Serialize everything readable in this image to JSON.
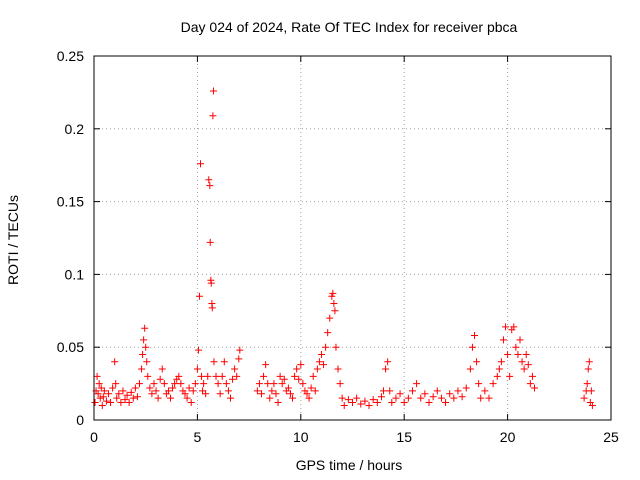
{
  "chart_data": {
    "type": "scatter",
    "title": "Day 024 of 2024, Rate Of TEC Index for receiver pbca",
    "xlabel": "GPS time / hours",
    "ylabel": "ROTI / TECUs",
    "xlim": [
      0,
      25
    ],
    "ylim": [
      0,
      0.25
    ],
    "xticks": [
      "0",
      "5",
      "10",
      "15",
      "20",
      "25"
    ],
    "yticks": [
      "0",
      "0.05",
      "0.1",
      "0.15",
      "0.2",
      "0.25"
    ],
    "grid": true,
    "marker": "+",
    "color": "#ff0000",
    "series": [
      {
        "points": [
          [
            0.05,
            0.012
          ],
          [
            0.1,
            0.02
          ],
          [
            0.15,
            0.03
          ],
          [
            0.2,
            0.018
          ],
          [
            0.25,
            0.025
          ],
          [
            0.3,
            0.015
          ],
          [
            0.35,
            0.022
          ],
          [
            0.4,
            0.01
          ],
          [
            0.45,
            0.016
          ],
          [
            0.5,
            0.02
          ],
          [
            0.6,
            0.013
          ],
          [
            0.7,
            0.018
          ],
          [
            0.8,
            0.012
          ],
          [
            0.9,
            0.022
          ],
          [
            1.0,
            0.04
          ],
          [
            1.05,
            0.025
          ],
          [
            1.1,
            0.015
          ],
          [
            1.2,
            0.018
          ],
          [
            1.3,
            0.012
          ],
          [
            1.4,
            0.02
          ],
          [
            1.5,
            0.014
          ],
          [
            1.6,
            0.017
          ],
          [
            1.7,
            0.012
          ],
          [
            1.8,
            0.019
          ],
          [
            1.9,
            0.015
          ],
          [
            2.0,
            0.022
          ],
          [
            2.1,
            0.016
          ],
          [
            2.2,
            0.025
          ],
          [
            2.3,
            0.035
          ],
          [
            2.35,
            0.045
          ],
          [
            2.4,
            0.055
          ],
          [
            2.45,
            0.063
          ],
          [
            2.5,
            0.05
          ],
          [
            2.55,
            0.04
          ],
          [
            2.6,
            0.03
          ],
          [
            2.7,
            0.022
          ],
          [
            2.8,
            0.018
          ],
          [
            2.9,
            0.025
          ],
          [
            3.0,
            0.02
          ],
          [
            3.1,
            0.015
          ],
          [
            3.2,
            0.028
          ],
          [
            3.3,
            0.035
          ],
          [
            3.4,
            0.025
          ],
          [
            3.5,
            0.018
          ],
          [
            3.6,
            0.02
          ],
          [
            3.7,
            0.015
          ],
          [
            3.8,
            0.022
          ],
          [
            3.9,
            0.025
          ],
          [
            4.0,
            0.028
          ],
          [
            4.1,
            0.03
          ],
          [
            4.2,
            0.025
          ],
          [
            4.3,
            0.02
          ],
          [
            4.4,
            0.018
          ],
          [
            4.5,
            0.015
          ],
          [
            4.6,
            0.022
          ],
          [
            4.7,
            0.012
          ],
          [
            4.8,
            0.02
          ],
          [
            4.9,
            0.025
          ],
          [
            5.0,
            0.035
          ],
          [
            5.05,
            0.048
          ],
          [
            5.1,
            0.085
          ],
          [
            5.15,
            0.176
          ],
          [
            5.2,
            0.03
          ],
          [
            5.25,
            0.02
          ],
          [
            5.3,
            0.025
          ],
          [
            5.4,
            0.018
          ],
          [
            5.5,
            0.03
          ],
          [
            5.55,
            0.165
          ],
          [
            5.6,
            0.161
          ],
          [
            5.62,
            0.122
          ],
          [
            5.65,
            0.096
          ],
          [
            5.67,
            0.094
          ],
          [
            5.7,
            0.08
          ],
          [
            5.72,
            0.077
          ],
          [
            5.75,
            0.209
          ],
          [
            5.78,
            0.226
          ],
          [
            5.8,
            0.04
          ],
          [
            5.9,
            0.03
          ],
          [
            6.0,
            0.025
          ],
          [
            6.1,
            0.018
          ],
          [
            6.2,
            0.03
          ],
          [
            6.3,
            0.04
          ],
          [
            6.4,
            0.025
          ],
          [
            6.5,
            0.02
          ],
          [
            6.6,
            0.015
          ],
          [
            6.7,
            0.028
          ],
          [
            6.8,
            0.035
          ],
          [
            6.9,
            0.03
          ],
          [
            7.0,
            0.042
          ],
          [
            7.05,
            0.048
          ],
          [
            7.9,
            0.02
          ],
          [
            8.0,
            0.025
          ],
          [
            8.1,
            0.018
          ],
          [
            8.2,
            0.03
          ],
          [
            8.3,
            0.038
          ],
          [
            8.4,
            0.025
          ],
          [
            8.5,
            0.015
          ],
          [
            8.6,
            0.02
          ],
          [
            8.7,
            0.025
          ],
          [
            8.8,
            0.018
          ],
          [
            8.9,
            0.012
          ],
          [
            9.0,
            0.03
          ],
          [
            9.1,
            0.025
          ],
          [
            9.2,
            0.028
          ],
          [
            9.3,
            0.02
          ],
          [
            9.4,
            0.022
          ],
          [
            9.5,
            0.018
          ],
          [
            9.6,
            0.015
          ],
          [
            9.7,
            0.03
          ],
          [
            9.8,
            0.035
          ],
          [
            9.9,
            0.028
          ],
          [
            10.0,
            0.038
          ],
          [
            10.1,
            0.025
          ],
          [
            10.2,
            0.02
          ],
          [
            10.3,
            0.018
          ],
          [
            10.4,
            0.015
          ],
          [
            10.5,
            0.022
          ],
          [
            10.6,
            0.03
          ],
          [
            10.7,
            0.02
          ],
          [
            10.8,
            0.035
          ],
          [
            10.9,
            0.04
          ],
          [
            11.0,
            0.045
          ],
          [
            11.1,
            0.038
          ],
          [
            11.2,
            0.05
          ],
          [
            11.3,
            0.06
          ],
          [
            11.4,
            0.07
          ],
          [
            11.5,
            0.085
          ],
          [
            11.55,
            0.087
          ],
          [
            11.6,
            0.08
          ],
          [
            11.65,
            0.075
          ],
          [
            11.7,
            0.05
          ],
          [
            11.8,
            0.035
          ],
          [
            11.9,
            0.025
          ],
          [
            12.0,
            0.015
          ],
          [
            12.1,
            0.01
          ],
          [
            12.3,
            0.014
          ],
          [
            12.5,
            0.012
          ],
          [
            12.7,
            0.015
          ],
          [
            12.9,
            0.011
          ],
          [
            13.1,
            0.013
          ],
          [
            13.3,
            0.01
          ],
          [
            13.5,
            0.014
          ],
          [
            13.7,
            0.012
          ],
          [
            13.9,
            0.016
          ],
          [
            14.0,
            0.02
          ],
          [
            14.1,
            0.035
          ],
          [
            14.2,
            0.04
          ],
          [
            14.3,
            0.02
          ],
          [
            14.4,
            0.012
          ],
          [
            14.6,
            0.015
          ],
          [
            14.8,
            0.018
          ],
          [
            15.0,
            0.012
          ],
          [
            15.2,
            0.015
          ],
          [
            15.4,
            0.02
          ],
          [
            15.6,
            0.025
          ],
          [
            15.8,
            0.015
          ],
          [
            16.0,
            0.018
          ],
          [
            16.2,
            0.012
          ],
          [
            16.4,
            0.016
          ],
          [
            16.6,
            0.02
          ],
          [
            16.8,
            0.015
          ],
          [
            17.0,
            0.012
          ],
          [
            17.2,
            0.018
          ],
          [
            17.4,
            0.015
          ],
          [
            17.6,
            0.02
          ],
          [
            17.8,
            0.016
          ],
          [
            18.0,
            0.022
          ],
          [
            18.2,
            0.035
          ],
          [
            18.3,
            0.05
          ],
          [
            18.4,
            0.058
          ],
          [
            18.5,
            0.04
          ],
          [
            18.6,
            0.025
          ],
          [
            18.7,
            0.015
          ],
          [
            18.9,
            0.02
          ],
          [
            19.1,
            0.015
          ],
          [
            19.3,
            0.025
          ],
          [
            19.5,
            0.03
          ],
          [
            19.6,
            0.035
          ],
          [
            19.7,
            0.04
          ],
          [
            19.8,
            0.055
          ],
          [
            19.9,
            0.064
          ],
          [
            20.0,
            0.045
          ],
          [
            20.1,
            0.03
          ],
          [
            20.2,
            0.062
          ],
          [
            20.3,
            0.064
          ],
          [
            20.4,
            0.05
          ],
          [
            20.5,
            0.045
          ],
          [
            20.6,
            0.055
          ],
          [
            20.7,
            0.04
          ],
          [
            20.8,
            0.035
          ],
          [
            20.9,
            0.045
          ],
          [
            21.0,
            0.038
          ],
          [
            21.1,
            0.025
          ],
          [
            21.2,
            0.03
          ],
          [
            21.3,
            0.022
          ],
          [
            23.7,
            0.015
          ],
          [
            23.8,
            0.02
          ],
          [
            23.85,
            0.025
          ],
          [
            23.9,
            0.035
          ],
          [
            23.95,
            0.04
          ],
          [
            24.0,
            0.012
          ],
          [
            24.05,
            0.02
          ],
          [
            24.1,
            0.01
          ]
        ]
      }
    ]
  }
}
